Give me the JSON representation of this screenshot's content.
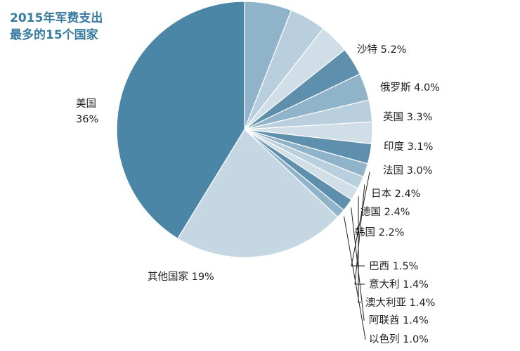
{
  "chart_data": {
    "type": "pie",
    "title_line1": "2015年军费支出",
    "title_line2": "最多的15个国家",
    "slices": [
      {
        "name": "沙特",
        "value": 5.2,
        "label": "沙特 5.2%",
        "color": "#8fb3c9"
      },
      {
        "name": "俄罗斯",
        "value": 4.0,
        "label": "俄罗斯 4.0%",
        "color": "#b9cfdd"
      },
      {
        "name": "英国",
        "value": 3.3,
        "label": "英国 3.3%",
        "color": "#d0dee8"
      },
      {
        "name": "印度",
        "value": 3.1,
        "label": "印度 3.1%",
        "color": "#5e8fad"
      },
      {
        "name": "法国",
        "value": 3.0,
        "label": "法国 3.0%",
        "color": "#8fb3c9"
      },
      {
        "name": "日本",
        "value": 2.4,
        "label": "日本 2.4%",
        "color": "#b9cfdd"
      },
      {
        "name": "德国",
        "value": 2.4,
        "label": "德国 2.4%",
        "color": "#d0dee8"
      },
      {
        "name": "韩国",
        "value": 2.2,
        "label": "韩国 2.2%",
        "color": "#5e8fad"
      },
      {
        "name": "巴西",
        "value": 1.5,
        "label": "巴西 1.5%",
        "color": "#8fb3c9"
      },
      {
        "name": "意大利",
        "value": 1.4,
        "label": "意大利 1.4%",
        "color": "#b9cfdd"
      },
      {
        "name": "澳大利亚",
        "value": 1.4,
        "label": "澳大利亚 1.4%",
        "color": "#d0dee8"
      },
      {
        "name": "阿联酋",
        "value": 1.4,
        "label": "阿联酋 1.4%",
        "color": "#5e8fad"
      },
      {
        "name": "以色列",
        "value": 1.0,
        "label": "以色列 1.0%",
        "color": "#8fb3c9"
      },
      {
        "name": "其他国家",
        "value": 19,
        "label": "其他国家 19%",
        "color": "#c5d7e3"
      },
      {
        "name": "美国",
        "value": 36,
        "label_line1": "美国",
        "label_line2": "36%",
        "color": "#4c86a6"
      }
    ]
  }
}
